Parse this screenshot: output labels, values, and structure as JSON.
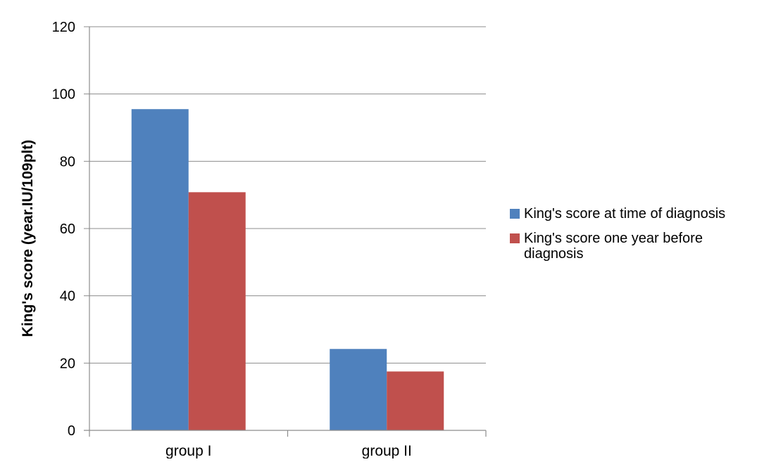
{
  "chart_data": {
    "type": "bar",
    "categories": [
      "group I",
      "group II"
    ],
    "series": [
      {
        "name": "King's score at time of diagnosis",
        "values": [
          95.5,
          24.2
        ],
        "color": "#4F81BD"
      },
      {
        "name": "King's score one year before diagnosis",
        "values": [
          70.8,
          17.5
        ],
        "color": "#C0504D"
      }
    ],
    "xlabel": "",
    "ylabel": "King's score (year.IU/109plt)",
    "ylim": [
      0,
      120
    ],
    "yticks": [
      0,
      20,
      40,
      60,
      80,
      100,
      120
    ],
    "grid": true,
    "legend_position": "right",
    "legend_lines": [
      [
        "King's score at time of diagnosis"
      ],
      [
        "King's score one year before",
        "diagnosis"
      ]
    ]
  }
}
